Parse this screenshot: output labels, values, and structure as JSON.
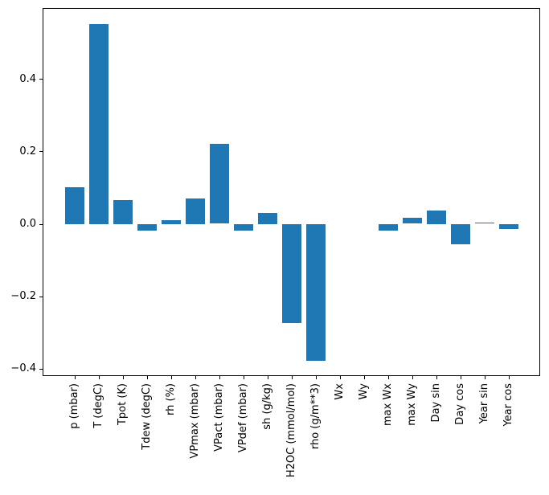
{
  "chart_data": {
    "type": "bar",
    "title": "",
    "xlabel": "",
    "ylabel": "",
    "categories": [
      "p (mbar)",
      "T (degC)",
      "Tpot (K)",
      "Tdew (degC)",
      "rh (%)",
      "VPmax (mbar)",
      "VPact (mbar)",
      "VPdef (mbar)",
      "sh (g/kg)",
      "H2OC (mmol/mol)",
      "rho (g/m**3)",
      "Wx",
      "Wy",
      "max Wx",
      "max Wy",
      "Day sin",
      "Day cos",
      "Year sin",
      "Year cos"
    ],
    "values": [
      0.101,
      0.551,
      0.066,
      -0.018,
      0.011,
      0.07,
      0.22,
      -0.017,
      0.03,
      -0.273,
      -0.378,
      0.0,
      0.0,
      -0.017,
      0.016,
      0.037,
      -0.056,
      0.003,
      -0.014
    ],
    "ylim": [
      -0.42,
      0.595
    ],
    "y_ticks": [
      {
        "value": 0.4,
        "label": "0.4"
      },
      {
        "value": 0.2,
        "label": "0.2"
      },
      {
        "value": 0.0,
        "label": "0.0"
      },
      {
        "value": -0.2,
        "label": "−0.2"
      },
      {
        "value": -0.4,
        "label": "−0.4"
      }
    ],
    "x_tick_rotation_deg": 90,
    "grid": false,
    "legend": null,
    "bar_color": "#1f77b4",
    "axis_color": "#000000"
  }
}
